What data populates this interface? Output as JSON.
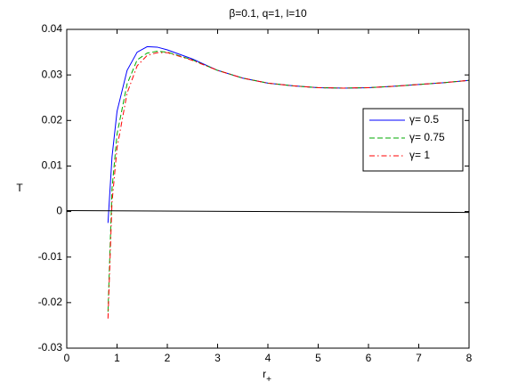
{
  "chart_data": {
    "type": "line",
    "title": "β=0.1, q=1, l=10",
    "xlabel": "r",
    "xlabel_subscript": "+",
    "ylabel": "T",
    "x": [
      0.82,
      0.9,
      1.0,
      1.2,
      1.4,
      1.6,
      1.8,
      2.0,
      2.5,
      3.0,
      3.5,
      4.0,
      4.5,
      5.0,
      5.5,
      6.0,
      6.5,
      7.0,
      7.5,
      8.0
    ],
    "series": [
      {
        "name": "γ= 0.5",
        "color": "#0000ff",
        "linestyle": "solid",
        "values": [
          -0.0025,
          0.012,
          0.022,
          0.031,
          0.035,
          0.0362,
          0.0361,
          0.0355,
          0.0335,
          0.031,
          0.0293,
          0.0282,
          0.0276,
          0.0272,
          0.0271,
          0.0272,
          0.0275,
          0.0279,
          0.0283,
          0.0288
        ]
      },
      {
        "name": "γ= 0.75",
        "color": "#00aa00",
        "linestyle": "dashed",
        "values": [
          -0.022,
          0.005,
          0.017,
          0.028,
          0.0333,
          0.0348,
          0.0352,
          0.035,
          0.0333,
          0.031,
          0.0293,
          0.0282,
          0.0276,
          0.0272,
          0.0271,
          0.0272,
          0.0275,
          0.0279,
          0.0283,
          0.0288
        ]
      },
      {
        "name": "γ= 1",
        "color": "#ff0000",
        "linestyle": "dashdot",
        "values": [
          -0.0235,
          0.002,
          0.014,
          0.026,
          0.032,
          0.0343,
          0.0349,
          0.0349,
          0.0332,
          0.031,
          0.0293,
          0.0282,
          0.0276,
          0.0272,
          0.0271,
          0.0272,
          0.0275,
          0.0279,
          0.0283,
          0.0288
        ]
      },
      {
        "color": "#000000",
        "linestyle": "solid",
        "x": [
          0,
          8
        ],
        "values": [
          0.0002,
          -0.0002
        ]
      }
    ],
    "xlim": [
      0,
      8
    ],
    "xticks": [
      0,
      1,
      2,
      3,
      4,
      5,
      6,
      7,
      8
    ],
    "ylim": [
      -0.03,
      0.04
    ],
    "yticks": [
      -0.03,
      -0.02,
      -0.01,
      0,
      0.01,
      0.02,
      0.03,
      0.04
    ],
    "grid": false,
    "legend_location": "east"
  }
}
